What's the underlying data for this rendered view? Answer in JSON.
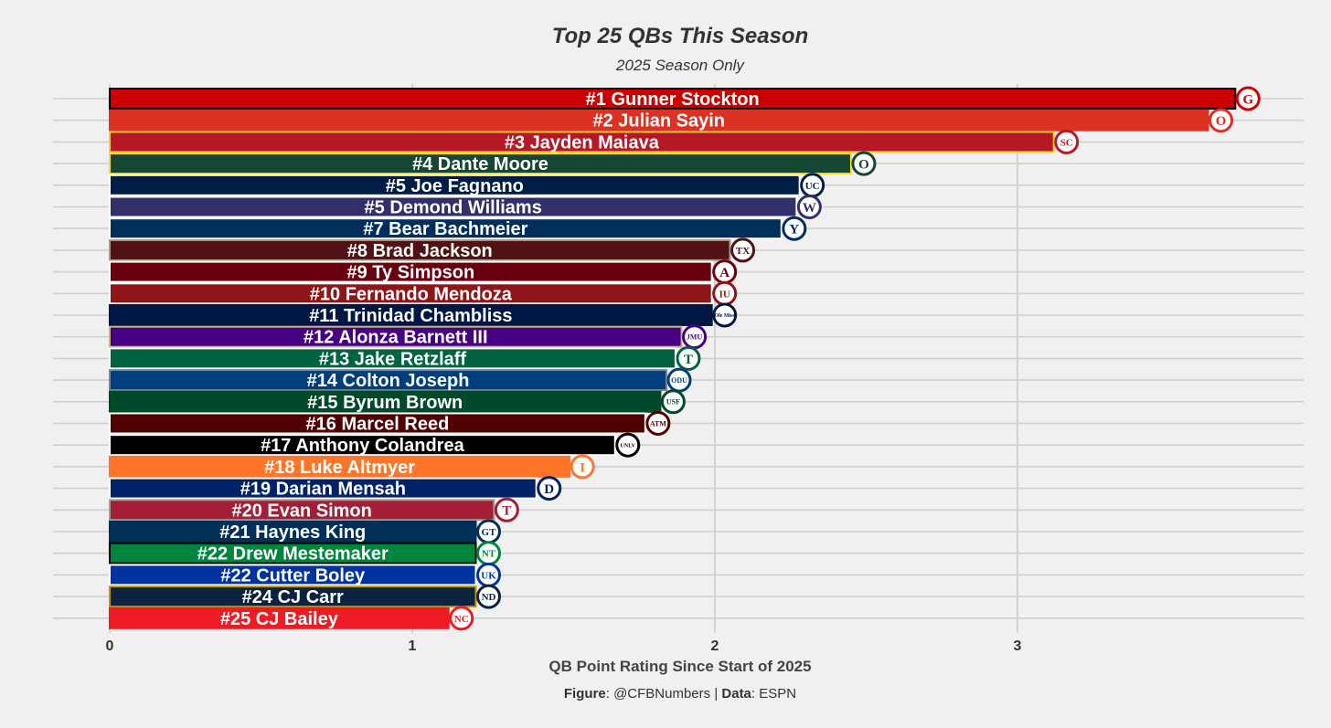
{
  "chart_data": {
    "type": "bar",
    "orientation": "horizontal",
    "title": "Top 25 QBs This Season",
    "subtitle": "2025 Season Only",
    "xlabel": "QB Point Rating Since Start of 2025",
    "ylabel": "",
    "xlim": [
      0,
      3.95
    ],
    "xticks": [
      0,
      1,
      2,
      3
    ],
    "grid": true,
    "caption": {
      "figure_label": "Figure",
      "figure_value": ": @CFBNumbers | ",
      "data_label": "Data",
      "data_value": ": ESPN"
    },
    "bars": [
      {
        "label": "#1 Gunner Stockton",
        "value": 3.72,
        "color": "#cc0000",
        "border": "#000000",
        "logo": "georgia-logo",
        "logo_text": "G"
      },
      {
        "label": "#2 Julian Sayin",
        "value": 3.63,
        "color": "#db3224",
        "border": "#db3224",
        "logo": "ohio-state-logo",
        "logo_text": "O"
      },
      {
        "label": "#3 Jayden Maiava",
        "value": 3.12,
        "color": "#b31a26",
        "border": "#ffc72c",
        "logo": "usc-logo",
        "logo_text": "SC"
      },
      {
        "label": "#4 Dante Moore",
        "value": 2.45,
        "color": "#154733",
        "border": "#fee123",
        "logo": "oregon-logo",
        "logo_text": "O"
      },
      {
        "label": "#5 Joe Fagnano",
        "value": 2.28,
        "color": "#001e45",
        "border": "#ffffff",
        "logo": "uconn-logo",
        "logo_text": "UC"
      },
      {
        "label": "#5 Demond Williams",
        "value": 2.27,
        "color": "#32306b",
        "border": "#ffffff",
        "logo": "washington-logo",
        "logo_text": "W"
      },
      {
        "label": "#7 Bear Bachmeier",
        "value": 2.22,
        "color": "#002e5d",
        "border": "#ffffff",
        "logo": "byu-logo",
        "logo_text": "Y"
      },
      {
        "label": "#8 Brad Jackson",
        "value": 2.05,
        "color": "#501214",
        "border": "#ac9d86",
        "logo": "texas-state-logo",
        "logo_text": "TX"
      },
      {
        "label": "#9 Ty Simpson",
        "value": 1.99,
        "color": "#690010",
        "border": "#ffffff",
        "logo": "alabama-logo",
        "logo_text": "A"
      },
      {
        "label": "#10 Fernando Mendoza",
        "value": 1.99,
        "color": "#8e1518",
        "border": "#ffffff",
        "logo": "indiana-logo",
        "logo_text": "IU"
      },
      {
        "label": "#11 Trinidad Chambliss",
        "value": 1.99,
        "color": "#001743",
        "border": "#001743",
        "logo": "ole-miss-logo",
        "logo_text": "Ole Miss"
      },
      {
        "label": "#12 Alonza Barnett III",
        "value": 1.89,
        "color": "#450084",
        "border": "#cbb677",
        "logo": "jmu-logo",
        "logo_text": "JMU"
      },
      {
        "label": "#13 Jake Retzlaff",
        "value": 1.87,
        "color": "#00633f",
        "border": "#ffffff",
        "logo": "tulane-logo",
        "logo_text": "T"
      },
      {
        "label": "#14 Colton Joseph",
        "value": 1.84,
        "color": "#003e7e",
        "border": "#7c878e",
        "logo": "odu-logo",
        "logo_text": "ODU"
      },
      {
        "label": "#15 Byrum Brown",
        "value": 1.82,
        "color": "#004a2b",
        "border": "#004a2b",
        "logo": "usf-logo",
        "logo_text": "USF"
      },
      {
        "label": "#16 Marcel Reed",
        "value": 1.77,
        "color": "#500000",
        "border": "#ffffff",
        "logo": "texas-am-logo",
        "logo_text": "ATM"
      },
      {
        "label": "#17 Anthony Colandrea",
        "value": 1.67,
        "color": "#000000",
        "border": "#ffffff",
        "logo": "unlv-logo",
        "logo_text": "UNLV"
      },
      {
        "label": "#18 Luke Altmyer",
        "value": 1.52,
        "color": "#ff7529",
        "border": "#ff7529",
        "logo": "illinois-logo",
        "logo_text": "I"
      },
      {
        "label": "#19 Darian Mensah",
        "value": 1.41,
        "color": "#012169",
        "border": "#ffffff",
        "logo": "duke-logo",
        "logo_text": "D"
      },
      {
        "label": "#20 Evan Simon",
        "value": 1.27,
        "color": "#a41e35",
        "border": "#a0a0a0",
        "logo": "temple-logo",
        "logo_text": "T"
      },
      {
        "label": "#21 Haynes King",
        "value": 1.21,
        "color": "#003057",
        "border": "#003057",
        "logo": "georgia-tech-logo",
        "logo_text": "GT"
      },
      {
        "label": "#22 Drew Mestemaker",
        "value": 1.21,
        "color": "#00853e",
        "border": "#000000",
        "logo": "north-texas-logo",
        "logo_text": "NT"
      },
      {
        "label": "#22 Cutter Boley",
        "value": 1.21,
        "color": "#0033a0",
        "border": "#ffffff",
        "logo": "kentucky-logo",
        "logo_text": "UK"
      },
      {
        "label": "#24 CJ Carr",
        "value": 1.21,
        "color": "#0c2340",
        "border": "#c99700",
        "logo": "notre-dame-logo",
        "logo_text": "ND"
      },
      {
        "label": "#25 CJ Bailey",
        "value": 1.12,
        "color": "#ee1b24",
        "border": "#ee1b24",
        "logo": "nc-state-logo",
        "logo_text": "NC"
      }
    ]
  }
}
